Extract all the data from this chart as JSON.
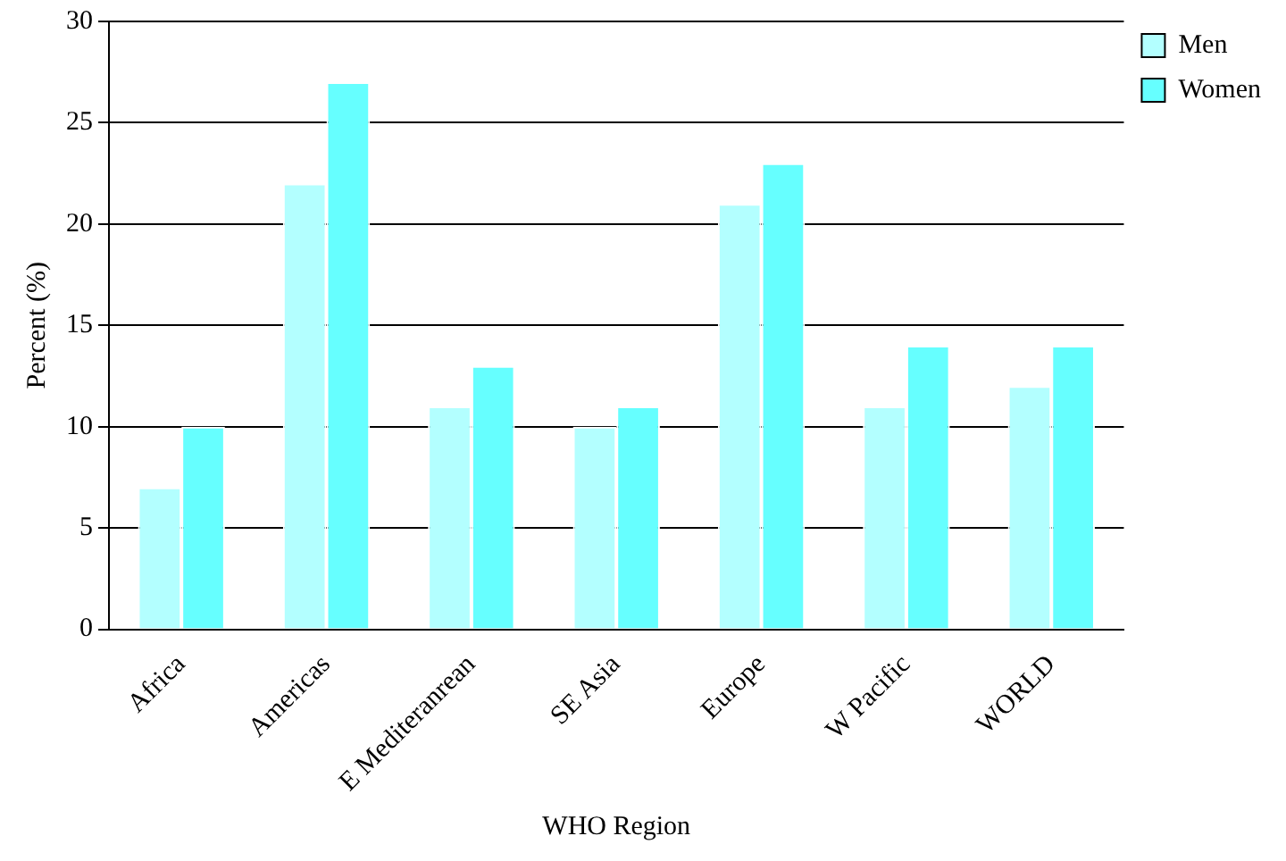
{
  "chart_data": {
    "type": "bar",
    "xlabel": "WHO Region",
    "ylabel": "Percent (%)",
    "categories": [
      "Africa",
      "Americas",
      "E Mediteranrean",
      "SE Asia",
      "Europe",
      "W Pacific",
      "WORLD"
    ],
    "series": [
      {
        "name": "Men",
        "color": "#b3ffff",
        "values": [
          7,
          22,
          11,
          10,
          21,
          11,
          12
        ]
      },
      {
        "name": "Women",
        "color": "#66ffff",
        "values": [
          10,
          27,
          13,
          11,
          23,
          14,
          14
        ]
      }
    ],
    "ylim": [
      0,
      30
    ],
    "yticks": [
      0,
      5,
      10,
      15,
      20,
      25,
      30
    ],
    "grid": "y",
    "legend": "top right"
  }
}
